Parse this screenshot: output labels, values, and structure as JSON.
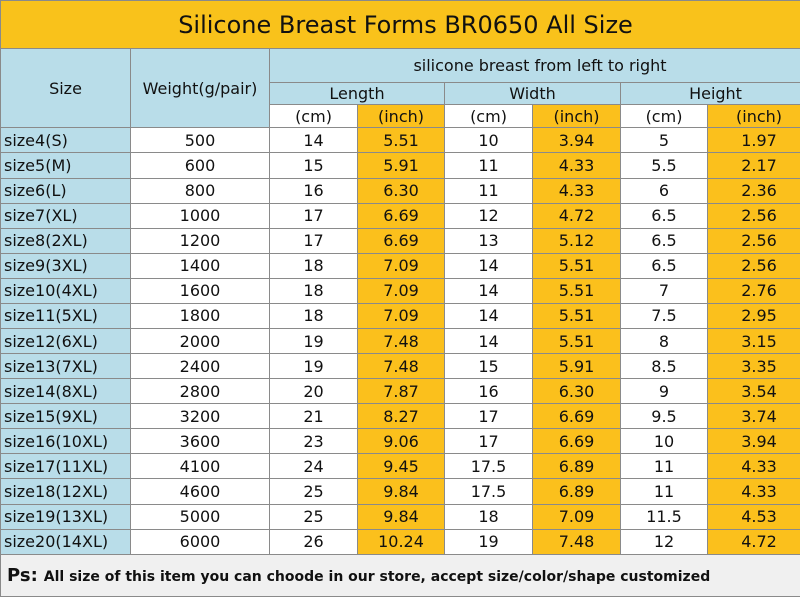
{
  "title": "Silicone Breast Forms BR0650 All Size",
  "header": {
    "size": "Size",
    "weight": "Weight(g/pair)",
    "group": "silicone breast from left to right",
    "dimensions": [
      "Length",
      "Width",
      "Height"
    ],
    "units": [
      "(cm)",
      "(inch)",
      "(cm)",
      "(inch)",
      "(cm)",
      "(inch)"
    ]
  },
  "table": {
    "rows": [
      [
        "size4(S)",
        "500",
        "14",
        "5.51",
        "10",
        "3.94",
        "5",
        "1.97"
      ],
      [
        "size5(M)",
        "600",
        "15",
        "5.91",
        "11",
        "4.33",
        "5.5",
        "2.17"
      ],
      [
        "size6(L)",
        "800",
        "16",
        "6.30",
        "11",
        "4.33",
        "6",
        "2.36"
      ],
      [
        "size7(XL)",
        "1000",
        "17",
        "6.69",
        "12",
        "4.72",
        "6.5",
        "2.56"
      ],
      [
        "size8(2XL)",
        "1200",
        "17",
        "6.69",
        "13",
        "5.12",
        "6.5",
        "2.56"
      ],
      [
        "size9(3XL)",
        "1400",
        "18",
        "7.09",
        "14",
        "5.51",
        "6.5",
        "2.56"
      ],
      [
        "size10(4XL)",
        "1600",
        "18",
        "7.09",
        "14",
        "5.51",
        "7",
        "2.76"
      ],
      [
        "size11(5XL)",
        "1800",
        "18",
        "7.09",
        "14",
        "5.51",
        "7.5",
        "2.95"
      ],
      [
        "size12(6XL)",
        "2000",
        "19",
        "7.48",
        "14",
        "5.51",
        "8",
        "3.15"
      ],
      [
        "size13(7XL)",
        "2400",
        "19",
        "7.48",
        "15",
        "5.91",
        "8.5",
        "3.35"
      ],
      [
        "size14(8XL)",
        "2800",
        "20",
        "7.87",
        "16",
        "6.30",
        "9",
        "3.54"
      ],
      [
        "size15(9XL)",
        "3200",
        "21",
        "8.27",
        "17",
        "6.69",
        "9.5",
        "3.74"
      ],
      [
        "size16(10XL)",
        "3600",
        "23",
        "9.06",
        "17",
        "6.69",
        "10",
        "3.94"
      ],
      [
        "size17(11XL)",
        "4100",
        "24",
        "9.45",
        "17.5",
        "6.89",
        "11",
        "4.33"
      ],
      [
        "size18(12XL)",
        "4600",
        "25",
        "9.84",
        "17.5",
        "6.89",
        "11",
        "4.33"
      ],
      [
        "size19(13XL)",
        "5000",
        "25",
        "9.84",
        "18",
        "7.09",
        "11.5",
        "4.53"
      ],
      [
        "size20(14XL)",
        "6000",
        "26",
        "10.24",
        "19",
        "7.48",
        "12",
        "4.72"
      ]
    ]
  },
  "footer": {
    "label": "Ps:",
    "text": "All size of this item you can choode in our store, accept size/color/shape customized"
  }
}
